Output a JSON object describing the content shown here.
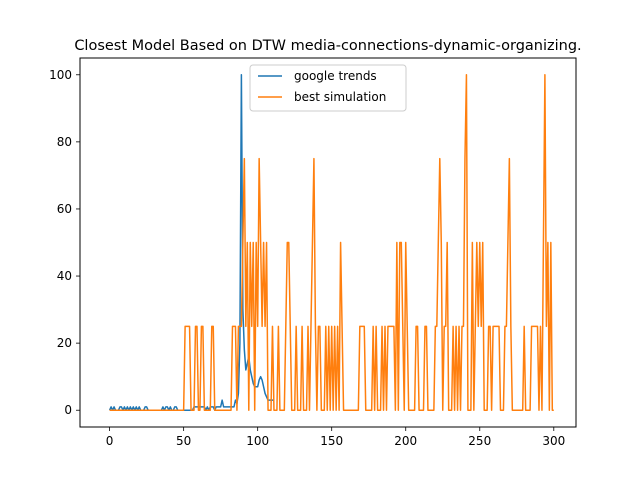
{
  "chart_data": {
    "type": "line",
    "title": "Closest Model Based on DTW media-connections-dynamic-organizing.",
    "xlabel": "",
    "ylabel": "",
    "xlim": [
      -20,
      315
    ],
    "ylim": [
      -5,
      105
    ],
    "xticks": [
      0,
      50,
      100,
      150,
      200,
      250,
      300
    ],
    "yticks": [
      0,
      20,
      40,
      60,
      80,
      100
    ],
    "grid": false,
    "legend_position": "top-center",
    "colors": {
      "google trends": "#1f77b4",
      "best simulation": "#ff7f0e"
    },
    "series": [
      {
        "name": "google trends",
        "x": [
          0,
          1,
          2,
          3,
          4,
          5,
          6,
          7,
          8,
          9,
          10,
          11,
          12,
          13,
          14,
          15,
          16,
          17,
          18,
          19,
          20,
          21,
          22,
          23,
          24,
          25,
          26,
          27,
          28,
          29,
          30,
          31,
          32,
          33,
          34,
          35,
          36,
          37,
          38,
          39,
          40,
          41,
          42,
          43,
          44,
          45,
          46,
          47,
          48,
          49,
          50,
          51,
          52,
          53,
          54,
          55,
          56,
          57,
          58,
          59,
          60,
          61,
          62,
          63,
          64,
          65,
          66,
          67,
          68,
          69,
          70,
          71,
          72,
          73,
          74,
          75,
          76,
          77,
          78,
          79,
          80,
          81,
          82,
          83,
          84,
          85,
          86,
          87,
          88,
          89,
          90,
          91,
          92,
          93,
          94,
          95,
          96,
          97,
          98,
          99,
          100,
          101,
          102,
          103,
          104,
          105,
          106,
          107,
          108,
          109,
          110,
          111
        ],
        "values": [
          0,
          1,
          0,
          1,
          0,
          0,
          0,
          1,
          1,
          0,
          1,
          0,
          1,
          0,
          1,
          0,
          1,
          0,
          1,
          0,
          1,
          0,
          0,
          0,
          1,
          1,
          0,
          0,
          0,
          0,
          0,
          0,
          0,
          0,
          0,
          0,
          1,
          0,
          1,
          1,
          0,
          1,
          0,
          0,
          1,
          1,
          0,
          0,
          0,
          0,
          0,
          0,
          0,
          0,
          0,
          0,
          0,
          1,
          1,
          1,
          1,
          1,
          1,
          1,
          1,
          0,
          1,
          0,
          1,
          1,
          1,
          0,
          1,
          1,
          1,
          1,
          3,
          1,
          1,
          1,
          1,
          1,
          1,
          1,
          1,
          3,
          2,
          5,
          20,
          100,
          30,
          18,
          12,
          14,
          16,
          12,
          10,
          8,
          7,
          7,
          7,
          9,
          10,
          9,
          7,
          5,
          4,
          3,
          3,
          3,
          3,
          3
        ]
      },
      {
        "name": "best simulation",
        "points": [
          [
            0,
            0
          ],
          [
            50,
            0
          ],
          [
            51,
            25
          ],
          [
            54,
            25
          ],
          [
            55,
            0
          ],
          [
            57,
            0
          ],
          [
            58,
            25
          ],
          [
            59,
            25
          ],
          [
            60,
            0
          ],
          [
            61,
            0
          ],
          [
            62,
            25
          ],
          [
            63,
            25
          ],
          [
            64,
            0
          ],
          [
            68,
            0
          ],
          [
            69,
            25
          ],
          [
            70,
            25
          ],
          [
            71,
            0
          ],
          [
            82,
            0
          ],
          [
            83,
            25
          ],
          [
            85,
            25
          ],
          [
            86,
            0
          ],
          [
            87,
            25
          ],
          [
            89,
            25
          ],
          [
            90,
            50
          ],
          [
            91,
            75
          ],
          [
            92,
            25
          ],
          [
            93,
            50
          ],
          [
            94,
            0
          ],
          [
            95,
            50
          ],
          [
            96,
            25
          ],
          [
            97,
            50
          ],
          [
            98,
            0
          ],
          [
            99,
            50
          ],
          [
            100,
            25
          ],
          [
            101,
            75
          ],
          [
            102,
            50
          ],
          [
            103,
            25
          ],
          [
            104,
            50
          ],
          [
            105,
            25
          ],
          [
            106,
            50
          ],
          [
            107,
            0
          ],
          [
            109,
            0
          ],
          [
            110,
            25
          ],
          [
            111,
            0
          ],
          [
            113,
            0
          ],
          [
            114,
            25
          ],
          [
            115,
            0
          ],
          [
            118,
            0
          ],
          [
            119,
            25
          ],
          [
            120,
            50
          ],
          [
            121,
            50
          ],
          [
            122,
            25
          ],
          [
            123,
            0
          ],
          [
            125,
            0
          ],
          [
            126,
            25
          ],
          [
            127,
            0
          ],
          [
            129,
            0
          ],
          [
            130,
            25
          ],
          [
            131,
            0
          ],
          [
            133,
            0
          ],
          [
            134,
            25
          ],
          [
            135,
            0
          ],
          [
            136,
            25
          ],
          [
            137,
            50
          ],
          [
            138,
            75
          ],
          [
            139,
            25
          ],
          [
            140,
            0
          ],
          [
            141,
            25
          ],
          [
            142,
            25
          ],
          [
            143,
            0
          ],
          [
            145,
            0
          ],
          [
            146,
            25
          ],
          [
            147,
            0
          ],
          [
            148,
            25
          ],
          [
            149,
            0
          ],
          [
            150,
            25
          ],
          [
            151,
            0
          ],
          [
            152,
            25
          ],
          [
            153,
            0
          ],
          [
            154,
            25
          ],
          [
            155,
            0
          ],
          [
            156,
            50
          ],
          [
            157,
            25
          ],
          [
            158,
            0
          ],
          [
            168,
            0
          ],
          [
            169,
            25
          ],
          [
            172,
            25
          ],
          [
            173,
            0
          ],
          [
            177,
            0
          ],
          [
            178,
            25
          ],
          [
            179,
            0
          ],
          [
            180,
            25
          ],
          [
            181,
            0
          ],
          [
            183,
            0
          ],
          [
            184,
            25
          ],
          [
            185,
            0
          ],
          [
            186,
            25
          ],
          [
            187,
            0
          ],
          [
            188,
            25
          ],
          [
            192,
            25
          ],
          [
            193,
            0
          ],
          [
            194,
            50
          ],
          [
            195,
            0
          ],
          [
            196,
            50
          ],
          [
            197,
            50
          ],
          [
            198,
            25
          ],
          [
            199,
            0
          ],
          [
            200,
            50
          ],
          [
            201,
            25
          ],
          [
            202,
            0
          ],
          [
            206,
            0
          ],
          [
            207,
            25
          ],
          [
            208,
            25
          ],
          [
            209,
            0
          ],
          [
            212,
            0
          ],
          [
            213,
            25
          ],
          [
            214,
            25
          ],
          [
            215,
            0
          ],
          [
            219,
            0
          ],
          [
            220,
            25
          ],
          [
            221,
            25
          ],
          [
            222,
            50
          ],
          [
            223,
            75
          ],
          [
            224,
            50
          ],
          [
            225,
            0
          ],
          [
            226,
            25
          ],
          [
            227,
            25
          ],
          [
            228,
            50
          ],
          [
            229,
            0
          ],
          [
            231,
            0
          ],
          [
            232,
            25
          ],
          [
            233,
            0
          ],
          [
            234,
            25
          ],
          [
            235,
            0
          ],
          [
            236,
            25
          ],
          [
            237,
            0
          ],
          [
            238,
            25
          ],
          [
            239,
            25
          ],
          [
            240,
            75
          ],
          [
            241,
            100
          ],
          [
            242,
            0
          ],
          [
            244,
            0
          ],
          [
            245,
            50
          ],
          [
            246,
            0
          ],
          [
            247,
            25
          ],
          [
            248,
            50
          ],
          [
            249,
            25
          ],
          [
            250,
            50
          ],
          [
            251,
            25
          ],
          [
            252,
            50
          ],
          [
            253,
            0
          ],
          [
            255,
            0
          ],
          [
            256,
            25
          ],
          [
            257,
            25
          ],
          [
            258,
            0
          ],
          [
            259,
            25
          ],
          [
            263,
            25
          ],
          [
            264,
            0
          ],
          [
            266,
            0
          ],
          [
            267,
            25
          ],
          [
            268,
            25
          ],
          [
            269,
            50
          ],
          [
            270,
            75
          ],
          [
            271,
            25
          ],
          [
            272,
            0
          ],
          [
            279,
            0
          ],
          [
            280,
            25
          ],
          [
            281,
            0
          ],
          [
            284,
            0
          ],
          [
            285,
            25
          ],
          [
            289,
            25
          ],
          [
            290,
            0
          ],
          [
            291,
            25
          ],
          [
            292,
            0
          ],
          [
            293,
            50
          ],
          [
            294,
            100
          ],
          [
            295,
            25
          ],
          [
            296,
            50
          ],
          [
            297,
            0
          ],
          [
            298,
            50
          ],
          [
            299,
            0
          ],
          [
            300,
            0
          ]
        ]
      }
    ]
  },
  "legend": {
    "items": [
      {
        "label": "google trends",
        "color": "#1f77b4"
      },
      {
        "label": "best simulation",
        "color": "#ff7f0e"
      }
    ]
  }
}
